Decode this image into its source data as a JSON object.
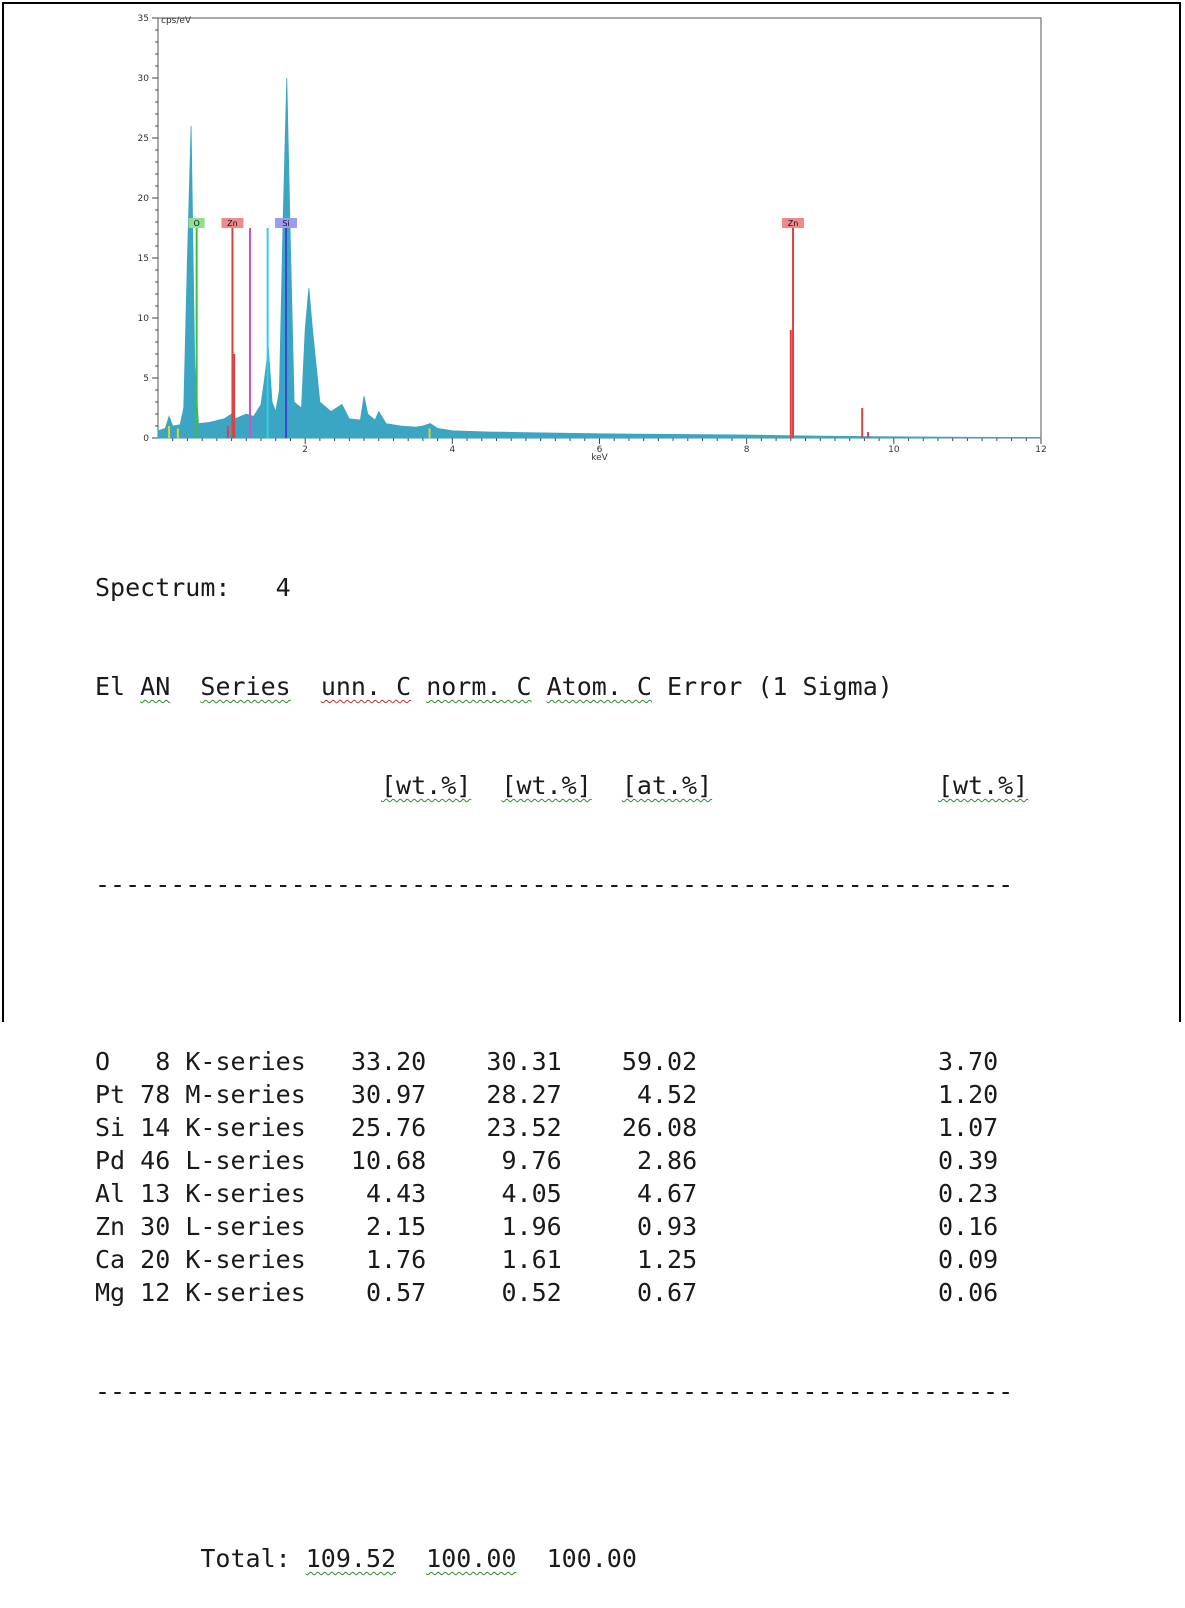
{
  "chart_data": {
    "type": "area",
    "ylabel": "cps/eV",
    "xlabel": "keV",
    "xlim": [
      0,
      12
    ],
    "ylim": [
      0,
      35
    ],
    "x_ticks": [
      "2",
      "4",
      "6",
      "8",
      "10",
      "12"
    ],
    "x_tick_values": [
      2,
      4,
      6,
      8,
      10,
      12
    ],
    "y_ticks": [
      "0",
      "5",
      "10",
      "15",
      "20",
      "25",
      "30",
      "35"
    ],
    "y_tick_values": [
      0,
      5,
      10,
      15,
      20,
      25,
      30,
      35
    ],
    "spectrum_color": "#3aa6c4",
    "spectrum": [
      [
        0.0,
        0.6
      ],
      [
        0.1,
        0.8
      ],
      [
        0.15,
        1.8
      ],
      [
        0.2,
        1.0
      ],
      [
        0.3,
        1.1
      ],
      [
        0.35,
        2.5
      ],
      [
        0.4,
        15
      ],
      [
        0.45,
        26
      ],
      [
        0.5,
        6
      ],
      [
        0.55,
        1.2
      ],
      [
        0.7,
        1.3
      ],
      [
        0.9,
        1.6
      ],
      [
        1.0,
        2.0
      ],
      [
        1.05,
        1.6
      ],
      [
        1.2,
        2.0
      ],
      [
        1.3,
        1.8
      ],
      [
        1.4,
        2.8
      ],
      [
        1.45,
        5
      ],
      [
        1.5,
        7.5
      ],
      [
        1.55,
        3
      ],
      [
        1.6,
        2.2
      ],
      [
        1.65,
        4
      ],
      [
        1.7,
        18
      ],
      [
        1.75,
        30
      ],
      [
        1.8,
        16
      ],
      [
        1.85,
        3
      ],
      [
        1.95,
        2.5
      ],
      [
        2.0,
        9
      ],
      [
        2.05,
        12.5
      ],
      [
        2.1,
        9
      ],
      [
        2.2,
        3
      ],
      [
        2.35,
        2.2
      ],
      [
        2.5,
        2.8
      ],
      [
        2.6,
        1.6
      ],
      [
        2.75,
        1.5
      ],
      [
        2.8,
        3.5
      ],
      [
        2.85,
        2
      ],
      [
        2.95,
        1.5
      ],
      [
        3.0,
        2.2
      ],
      [
        3.1,
        1.2
      ],
      [
        3.3,
        1.0
      ],
      [
        3.5,
        0.9
      ],
      [
        3.6,
        1.0
      ],
      [
        3.7,
        1.2
      ],
      [
        3.8,
        0.8
      ],
      [
        4.0,
        0.6
      ],
      [
        4.5,
        0.5
      ],
      [
        5.0,
        0.45
      ],
      [
        6.0,
        0.35
      ],
      [
        7.0,
        0.3
      ],
      [
        8.0,
        0.25
      ],
      [
        9.0,
        0.15
      ],
      [
        10.0,
        0.1
      ],
      [
        11.0,
        0.06
      ],
      [
        12.0,
        0.05
      ]
    ],
    "element_markers": [
      {
        "label": "O",
        "energy": 0.525,
        "height": 17.5,
        "color": "#3dbf3d",
        "badge_bg": "#8fe08f"
      },
      {
        "label": "Zn",
        "energy": 1.012,
        "height": 17.5,
        "color": "#e04040",
        "badge_bg": "#f08a8a"
      },
      {
        "label": "Si",
        "energy": 1.74,
        "height": 17.5,
        "color": "#3a48d0",
        "badge_bg": "#9a9cf0"
      },
      {
        "label": "Zn",
        "energy": 8.63,
        "height": 17.5,
        "color": "#e04040",
        "badge_bg": "#f08a8a"
      }
    ],
    "extra_lines": [
      {
        "energy": 1.25,
        "height": 17.5,
        "color": "#d050d0"
      },
      {
        "energy": 1.49,
        "height": 17.5,
        "color": "#30d0e0"
      },
      {
        "energy": 1.035,
        "height": 7,
        "color": "#e04040"
      },
      {
        "energy": 8.6,
        "height": 9,
        "color": "#e04040"
      },
      {
        "energy": 9.57,
        "height": 2.5,
        "color": "#e04040"
      },
      {
        "energy": 9.65,
        "height": 0.5,
        "color": "#e04040"
      },
      {
        "energy": 0.15,
        "height": 1.0,
        "color": "#d8d820"
      },
      {
        "energy": 0.27,
        "height": 0.8,
        "color": "#d8d820"
      },
      {
        "energy": 0.95,
        "height": 1.0,
        "color": "#e04040"
      },
      {
        "energy": 3.69,
        "height": 0.8,
        "color": "#d8d820"
      }
    ]
  },
  "report": {
    "spectrum_label": "Spectrum:",
    "spectrum_number": "4",
    "header": {
      "el": "El",
      "an": "AN",
      "series": "Series",
      "unn": "unn. C",
      "norm": "norm. C",
      "atom": "Atom. C",
      "error": "Error (1 Sigma)"
    },
    "units": {
      "unn": "[wt.%]",
      "norm": "[wt.%]",
      "atom": "[at.%]",
      "error": "[wt.%]"
    },
    "separator": "-------------------------------------------------------------",
    "rows": [
      {
        "el": "O",
        "an": "8",
        "series": "K-series",
        "unn": "33.20",
        "norm": "30.31",
        "atom": "59.02",
        "error": "3.70"
      },
      {
        "el": "Pt",
        "an": "78",
        "series": "M-series",
        "unn": "30.97",
        "norm": "28.27",
        "atom": "4.52",
        "error": "1.20"
      },
      {
        "el": "Si",
        "an": "14",
        "series": "K-series",
        "unn": "25.76",
        "norm": "23.52",
        "atom": "26.08",
        "error": "1.07"
      },
      {
        "el": "Pd",
        "an": "46",
        "series": "L-series",
        "unn": "10.68",
        "norm": "9.76",
        "atom": "2.86",
        "error": "0.39"
      },
      {
        "el": "Al",
        "an": "13",
        "series": "K-series",
        "unn": "4.43",
        "norm": "4.05",
        "atom": "4.67",
        "error": "0.23"
      },
      {
        "el": "Zn",
        "an": "30",
        "series": "L-series",
        "unn": "2.15",
        "norm": "1.96",
        "atom": "0.93",
        "error": "0.16"
      },
      {
        "el": "Ca",
        "an": "20",
        "series": "K-series",
        "unn": "1.76",
        "norm": "1.61",
        "atom": "1.25",
        "error": "0.09"
      },
      {
        "el": "Mg",
        "an": "12",
        "series": "K-series",
        "unn": "0.57",
        "norm": "0.52",
        "atom": "0.67",
        "error": "0.06"
      }
    ],
    "total_label": "Total:",
    "total": {
      "unn": "109.52",
      "norm": "100.00",
      "atom": "100.00"
    }
  }
}
